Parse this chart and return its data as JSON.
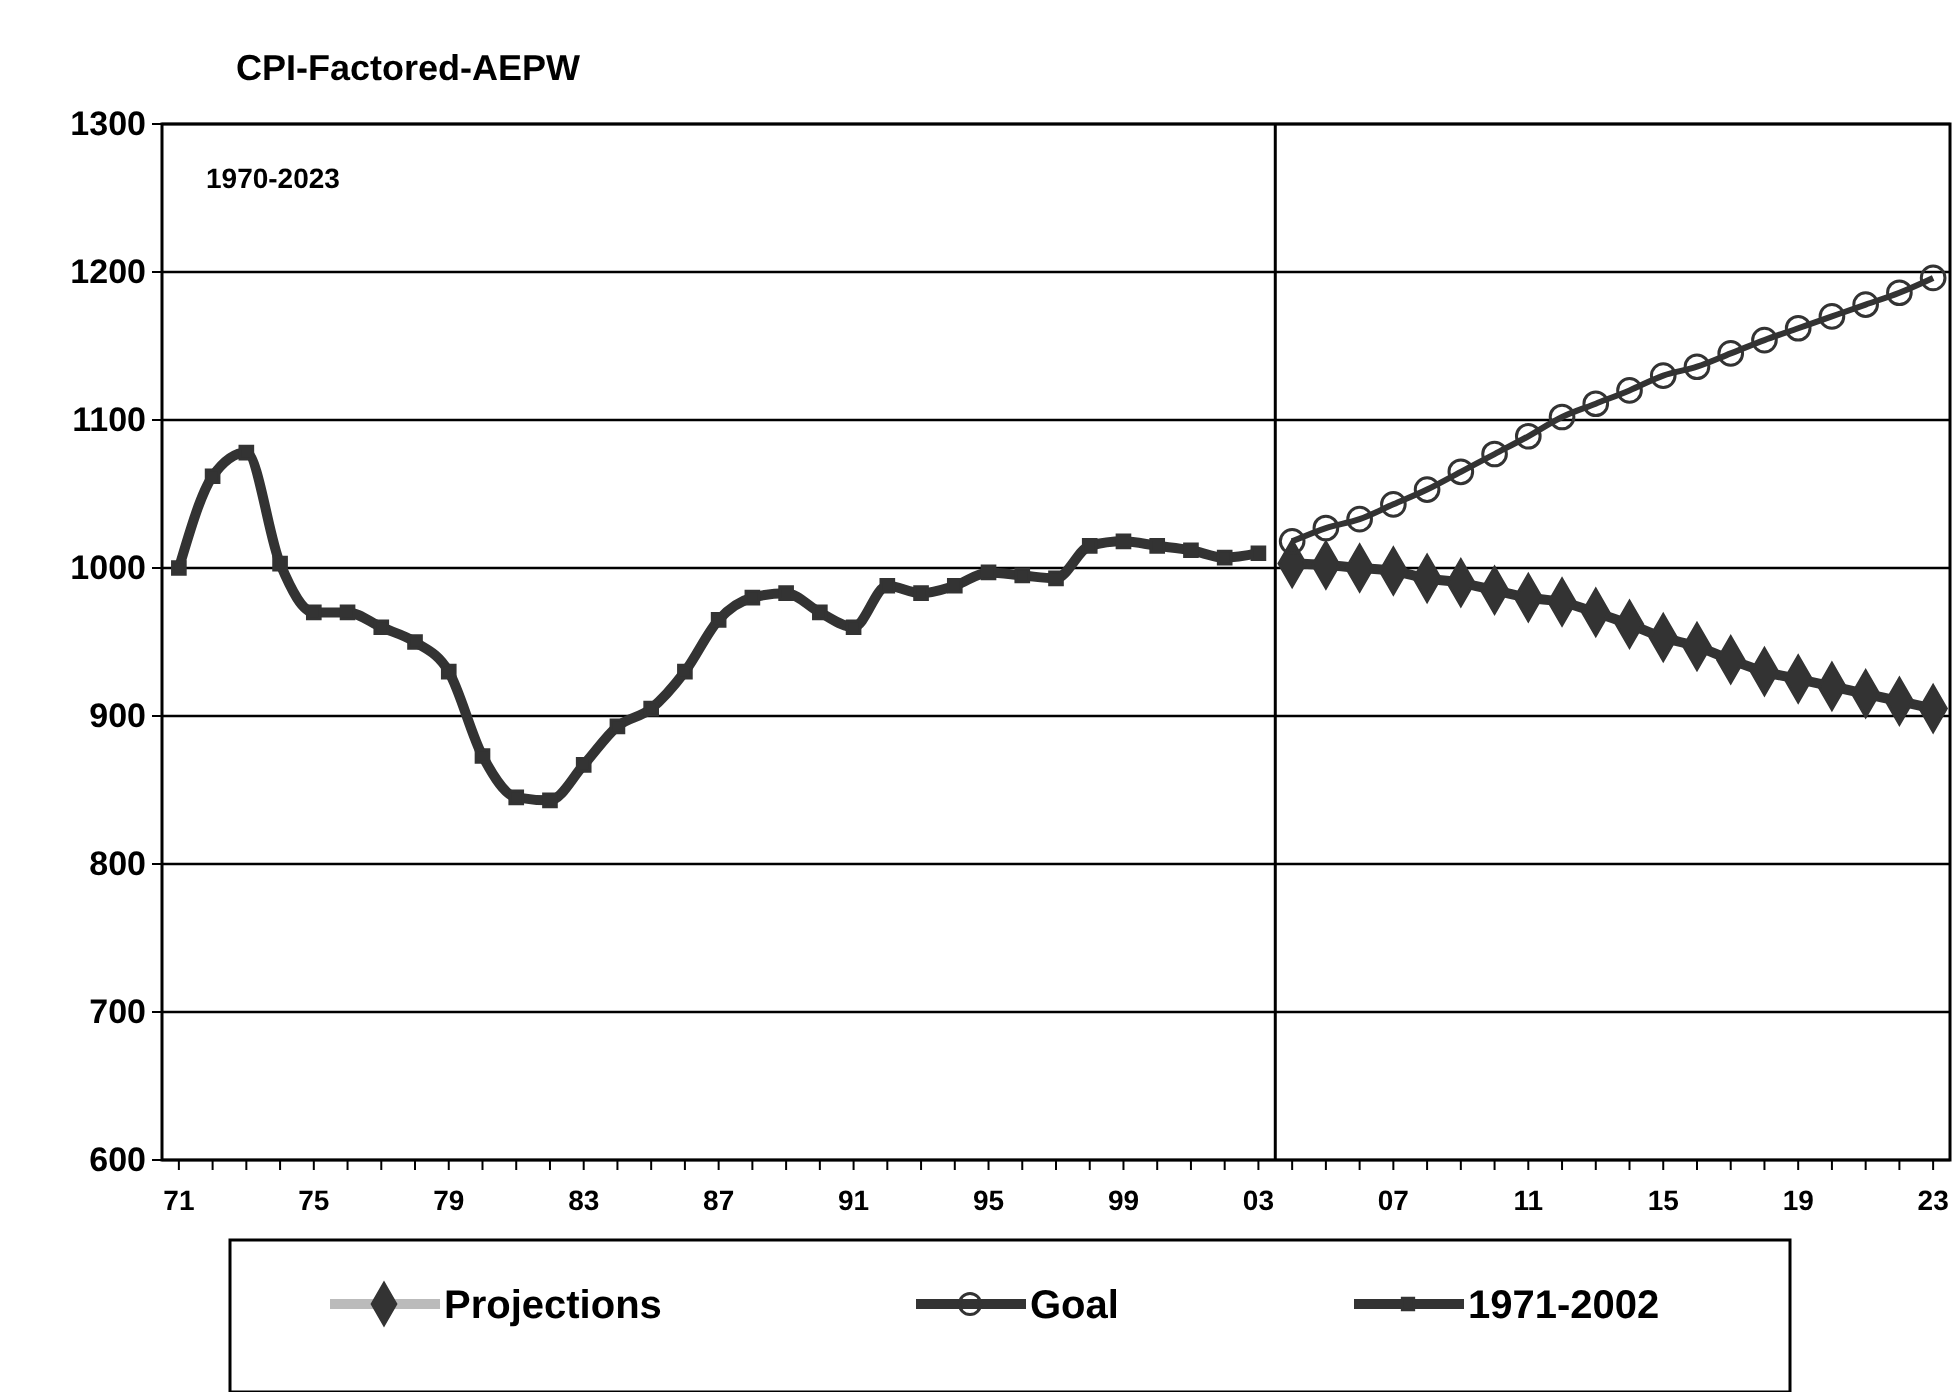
{
  "chart_data": {
    "type": "line",
    "title": "CPI-Factored-AEPW",
    "annotations": [
      "1970-2023"
    ],
    "categories": [
      "71",
      null,
      null,
      null,
      "75",
      null,
      null,
      null,
      "79",
      null,
      null,
      null,
      "83",
      null,
      null,
      null,
      "87",
      null,
      null,
      null,
      "91",
      null,
      null,
      null,
      "95",
      null,
      null,
      null,
      "99",
      null,
      null,
      null,
      "03",
      null,
      null,
      null,
      "07",
      null,
      null,
      null,
      "11",
      null,
      null,
      null,
      "15",
      null,
      null,
      null,
      "19",
      null,
      null,
      null,
      "23"
    ],
    "ylim": [
      600,
      1300
    ],
    "yticks": [
      600,
      700,
      800,
      900,
      1000,
      1100,
      1200,
      1300
    ],
    "grid": "y",
    "legend": "bottom",
    "ref_lines": [
      {
        "axis": "x",
        "value": "03",
        "color": "#000000"
      }
    ],
    "series": [
      {
        "name": "Projections",
        "color": "#333333",
        "marker": "diamond",
        "values": [
          null,
          null,
          null,
          null,
          null,
          null,
          null,
          null,
          null,
          null,
          null,
          null,
          null,
          null,
          null,
          null,
          null,
          null,
          null,
          null,
          null,
          null,
          null,
          null,
          null,
          null,
          null,
          null,
          null,
          null,
          null,
          null,
          null,
          1003,
          1002,
          1000,
          998,
          993,
          990,
          985,
          980,
          977,
          970,
          962,
          953,
          947,
          938,
          930,
          925,
          920,
          915,
          910,
          905
        ]
      },
      {
        "name": "Goal",
        "color": "#333333",
        "marker": "circle",
        "values": [
          null,
          null,
          null,
          null,
          null,
          null,
          null,
          null,
          null,
          null,
          null,
          null,
          null,
          null,
          null,
          null,
          null,
          null,
          null,
          null,
          null,
          null,
          null,
          null,
          null,
          null,
          null,
          null,
          null,
          null,
          null,
          null,
          null,
          1018,
          1027,
          1033,
          1043,
          1053,
          1065,
          1077,
          1089,
          1102,
          1111,
          1120,
          1130,
          1136,
          1145,
          1154,
          1162,
          1170,
          1178,
          1186,
          1196
        ]
      },
      {
        "name": "1971-2002",
        "color": "#333333",
        "marker": "square",
        "values": [
          1000,
          1062,
          1078,
          1003,
          970,
          970,
          960,
          950,
          930,
          873,
          845,
          843,
          867,
          893,
          905,
          930,
          965,
          980,
          983,
          970,
          960,
          988,
          983,
          988,
          997,
          995,
          993,
          1015,
          1018,
          1015,
          1012,
          1007,
          1010,
          null,
          null,
          null,
          null,
          null,
          null,
          null,
          null,
          null,
          null,
          null,
          null,
          null,
          null,
          null,
          null,
          null,
          null,
          null,
          null
        ]
      }
    ]
  }
}
